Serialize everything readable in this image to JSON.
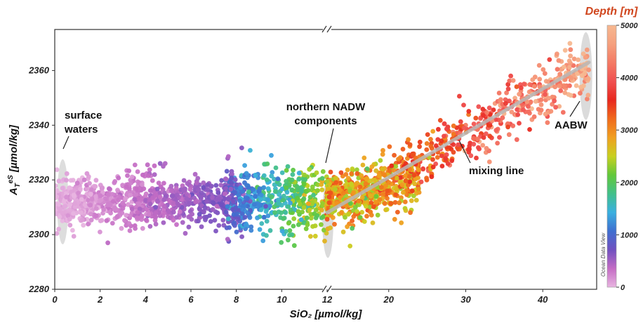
{
  "chart_data": {
    "type": "scatter",
    "title": "",
    "xlabel": "SiO₂ [µmol/kg]",
    "ylabel_main": "A",
    "ylabel_sub": "T",
    "ylabel_sup": "eS",
    "ylabel_unit": " [µmol/kg]",
    "x_axis_break": true,
    "x_segment_low": {
      "range": [
        0,
        12
      ],
      "ticks": [
        "0",
        "2",
        "4",
        "6",
        "8",
        "10",
        "12"
      ]
    },
    "x_segment_high": {
      "range": [
        12,
        47
      ],
      "ticks": [
        "12",
        "20",
        "30",
        "40"
      ]
    },
    "ylim": [
      2280,
      2375
    ],
    "y_ticks": [
      "2280",
      "2300",
      "2320",
      "2340",
      "2360"
    ],
    "grid": false,
    "colorbar": {
      "title": "Depth [m]",
      "range": [
        0,
        5000
      ],
      "ticks": [
        "0",
        "1000",
        "2000",
        "3000",
        "4000",
        "5000"
      ],
      "colors": [
        "#e8b4e0",
        "#c46cc4",
        "#7050c0",
        "#3f6fd0",
        "#3ab0e0",
        "#42c08a",
        "#62c83a",
        "#c8d020",
        "#f0a020",
        "#f06a1c",
        "#e8281e",
        "#f05050",
        "#f47a64",
        "#f5a07e",
        "#f7b890"
      ],
      "credit": "Ocean Data View"
    },
    "clusters": [
      {
        "name": "surface",
        "n": 900,
        "x_low": [
          0,
          8
        ],
        "y": [
          2297,
          2326
        ],
        "depth": [
          0,
          700
        ]
      },
      {
        "name": "intermediate",
        "n": 500,
        "x_low": [
          7.5,
          12
        ],
        "y": [
          2296,
          2333
        ],
        "depth": [
          800,
          2500
        ]
      },
      {
        "name": "nadw",
        "n": 450,
        "x": [
          12,
          24
        ],
        "y": [
          2300,
          2330
        ],
        "depth": [
          2300,
          3400
        ]
      },
      {
        "name": "mixing",
        "n": 600,
        "x": [
          14,
          46
        ],
        "y_trend": [
          [
            12,
            2308
          ],
          [
            46,
            2362
          ]
        ],
        "y_spread": 9,
        "depth": [
          2500,
          4800
        ]
      }
    ],
    "mixing_line": {
      "from": [
        12,
        2308
      ],
      "to": [
        46,
        2363
      ]
    },
    "annotations": [
      {
        "key": "surface",
        "lines": [
          "surface",
          "waters"
        ]
      },
      {
        "key": "nadw",
        "lines": [
          "northern NADW",
          "components"
        ]
      },
      {
        "key": "mixing",
        "lines": [
          "mixing line"
        ]
      },
      {
        "key": "aabw",
        "lines": [
          "AABW"
        ]
      }
    ]
  }
}
